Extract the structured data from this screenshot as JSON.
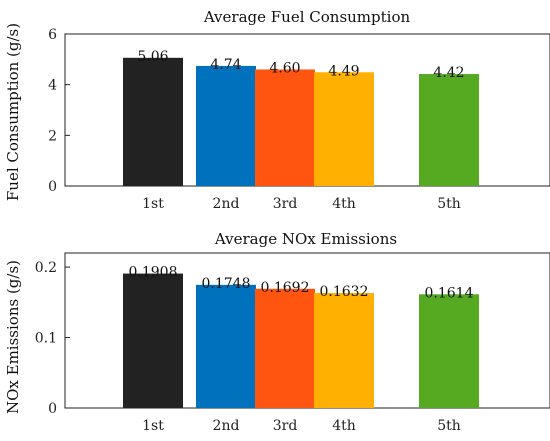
{
  "chart_data": [
    {
      "type": "bar",
      "title": "Average Fuel Consumption",
      "xlabel": "",
      "ylabel": "Fuel Consumption (g/s)",
      "categories": [
        "1st",
        "2nd",
        "3rd",
        "4th",
        "5th"
      ],
      "values": [
        5.06,
        4.74,
        4.6,
        4.49,
        4.42
      ],
      "value_labels": [
        "5.06",
        "4.74",
        "4.60",
        "4.49",
        "4.42"
      ],
      "ylim": [
        0,
        6
      ],
      "yticks": [
        0,
        2,
        4,
        6
      ],
      "ytick_labels": [
        "0",
        "2",
        "4",
        "6"
      ],
      "grid": false,
      "colors": [
        "#222222",
        "#0072BD",
        "#FF5511",
        "#FFB000",
        "#55AA22"
      ]
    },
    {
      "type": "bar",
      "title": "Average NOx Emissions",
      "xlabel": "",
      "ylabel": "NOx Emissions (g/s)",
      "categories": [
        "1st",
        "2nd",
        "3rd",
        "4th",
        "5th"
      ],
      "values": [
        0.1908,
        0.1748,
        0.1692,
        0.1632,
        0.1614
      ],
      "value_labels": [
        "0.1908",
        "0.1748",
        "0.1692",
        "0.1632",
        "0.1614"
      ],
      "ylim": [
        0,
        0.22
      ],
      "yticks": [
        0,
        0.1,
        0.2
      ],
      "ytick_labels": [
        "0",
        "0.1",
        "0.2"
      ],
      "grid": false,
      "colors": [
        "#222222",
        "#0072BD",
        "#FF5511",
        "#FFB000",
        "#55AA22"
      ]
    }
  ]
}
